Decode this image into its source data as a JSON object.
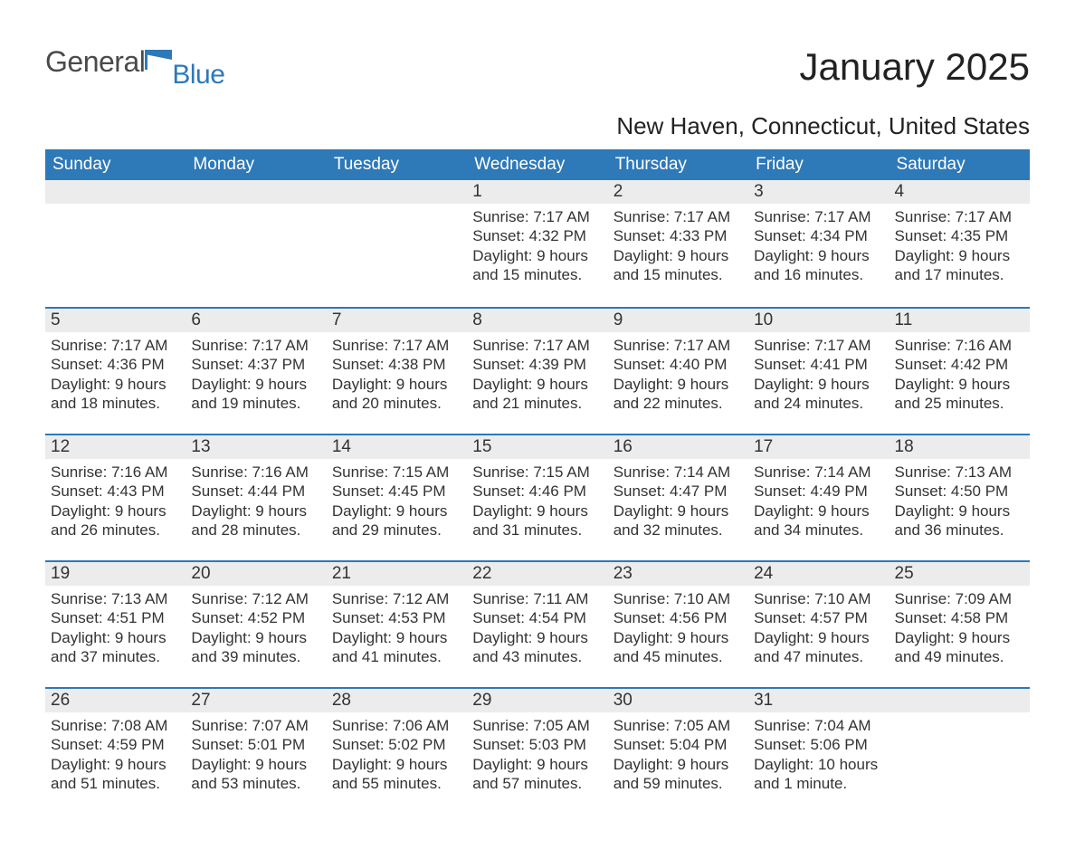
{
  "brand": {
    "main": "General",
    "sub": "Blue",
    "accent_color": "#2e79b8"
  },
  "title": "January 2025",
  "location": "New Haven, Connecticut, United States",
  "colors": {
    "header_bg": "#2e79b8",
    "header_text": "#ffffff",
    "date_row_bg": "#ececec",
    "date_row_border": "#2e79b8",
    "body_text": "#333333",
    "page_bg": "#ffffff"
  },
  "fonts": {
    "family": "Arial",
    "th_size_pt": 14,
    "title_size_pt": 32,
    "location_size_pt": 20,
    "body_size_pt": 13
  },
  "weekday_headers": [
    "Sunday",
    "Monday",
    "Tuesday",
    "Wednesday",
    "Thursday",
    "Friday",
    "Saturday"
  ],
  "weeks": [
    [
      {
        "date": null
      },
      {
        "date": null
      },
      {
        "date": null
      },
      {
        "date": "1",
        "sunrise": "Sunrise: 7:17 AM",
        "sunset": "Sunset: 4:32 PM",
        "dl1": "Daylight: 9 hours",
        "dl2": "and 15 minutes."
      },
      {
        "date": "2",
        "sunrise": "Sunrise: 7:17 AM",
        "sunset": "Sunset: 4:33 PM",
        "dl1": "Daylight: 9 hours",
        "dl2": "and 15 minutes."
      },
      {
        "date": "3",
        "sunrise": "Sunrise: 7:17 AM",
        "sunset": "Sunset: 4:34 PM",
        "dl1": "Daylight: 9 hours",
        "dl2": "and 16 minutes."
      },
      {
        "date": "4",
        "sunrise": "Sunrise: 7:17 AM",
        "sunset": "Sunset: 4:35 PM",
        "dl1": "Daylight: 9 hours",
        "dl2": "and 17 minutes."
      }
    ],
    [
      {
        "date": "5",
        "sunrise": "Sunrise: 7:17 AM",
        "sunset": "Sunset: 4:36 PM",
        "dl1": "Daylight: 9 hours",
        "dl2": "and 18 minutes."
      },
      {
        "date": "6",
        "sunrise": "Sunrise: 7:17 AM",
        "sunset": "Sunset: 4:37 PM",
        "dl1": "Daylight: 9 hours",
        "dl2": "and 19 minutes."
      },
      {
        "date": "7",
        "sunrise": "Sunrise: 7:17 AM",
        "sunset": "Sunset: 4:38 PM",
        "dl1": "Daylight: 9 hours",
        "dl2": "and 20 minutes."
      },
      {
        "date": "8",
        "sunrise": "Sunrise: 7:17 AM",
        "sunset": "Sunset: 4:39 PM",
        "dl1": "Daylight: 9 hours",
        "dl2": "and 21 minutes."
      },
      {
        "date": "9",
        "sunrise": "Sunrise: 7:17 AM",
        "sunset": "Sunset: 4:40 PM",
        "dl1": "Daylight: 9 hours",
        "dl2": "and 22 minutes."
      },
      {
        "date": "10",
        "sunrise": "Sunrise: 7:17 AM",
        "sunset": "Sunset: 4:41 PM",
        "dl1": "Daylight: 9 hours",
        "dl2": "and 24 minutes."
      },
      {
        "date": "11",
        "sunrise": "Sunrise: 7:16 AM",
        "sunset": "Sunset: 4:42 PM",
        "dl1": "Daylight: 9 hours",
        "dl2": "and 25 minutes."
      }
    ],
    [
      {
        "date": "12",
        "sunrise": "Sunrise: 7:16 AM",
        "sunset": "Sunset: 4:43 PM",
        "dl1": "Daylight: 9 hours",
        "dl2": "and 26 minutes."
      },
      {
        "date": "13",
        "sunrise": "Sunrise: 7:16 AM",
        "sunset": "Sunset: 4:44 PM",
        "dl1": "Daylight: 9 hours",
        "dl2": "and 28 minutes."
      },
      {
        "date": "14",
        "sunrise": "Sunrise: 7:15 AM",
        "sunset": "Sunset: 4:45 PM",
        "dl1": "Daylight: 9 hours",
        "dl2": "and 29 minutes."
      },
      {
        "date": "15",
        "sunrise": "Sunrise: 7:15 AM",
        "sunset": "Sunset: 4:46 PM",
        "dl1": "Daylight: 9 hours",
        "dl2": "and 31 minutes."
      },
      {
        "date": "16",
        "sunrise": "Sunrise: 7:14 AM",
        "sunset": "Sunset: 4:47 PM",
        "dl1": "Daylight: 9 hours",
        "dl2": "and 32 minutes."
      },
      {
        "date": "17",
        "sunrise": "Sunrise: 7:14 AM",
        "sunset": "Sunset: 4:49 PM",
        "dl1": "Daylight: 9 hours",
        "dl2": "and 34 minutes."
      },
      {
        "date": "18",
        "sunrise": "Sunrise: 7:13 AM",
        "sunset": "Sunset: 4:50 PM",
        "dl1": "Daylight: 9 hours",
        "dl2": "and 36 minutes."
      }
    ],
    [
      {
        "date": "19",
        "sunrise": "Sunrise: 7:13 AM",
        "sunset": "Sunset: 4:51 PM",
        "dl1": "Daylight: 9 hours",
        "dl2": "and 37 minutes."
      },
      {
        "date": "20",
        "sunrise": "Sunrise: 7:12 AM",
        "sunset": "Sunset: 4:52 PM",
        "dl1": "Daylight: 9 hours",
        "dl2": "and 39 minutes."
      },
      {
        "date": "21",
        "sunrise": "Sunrise: 7:12 AM",
        "sunset": "Sunset: 4:53 PM",
        "dl1": "Daylight: 9 hours",
        "dl2": "and 41 minutes."
      },
      {
        "date": "22",
        "sunrise": "Sunrise: 7:11 AM",
        "sunset": "Sunset: 4:54 PM",
        "dl1": "Daylight: 9 hours",
        "dl2": "and 43 minutes."
      },
      {
        "date": "23",
        "sunrise": "Sunrise: 7:10 AM",
        "sunset": "Sunset: 4:56 PM",
        "dl1": "Daylight: 9 hours",
        "dl2": "and 45 minutes."
      },
      {
        "date": "24",
        "sunrise": "Sunrise: 7:10 AM",
        "sunset": "Sunset: 4:57 PM",
        "dl1": "Daylight: 9 hours",
        "dl2": "and 47 minutes."
      },
      {
        "date": "25",
        "sunrise": "Sunrise: 7:09 AM",
        "sunset": "Sunset: 4:58 PM",
        "dl1": "Daylight: 9 hours",
        "dl2": "and 49 minutes."
      }
    ],
    [
      {
        "date": "26",
        "sunrise": "Sunrise: 7:08 AM",
        "sunset": "Sunset: 4:59 PM",
        "dl1": "Daylight: 9 hours",
        "dl2": "and 51 minutes."
      },
      {
        "date": "27",
        "sunrise": "Sunrise: 7:07 AM",
        "sunset": "Sunset: 5:01 PM",
        "dl1": "Daylight: 9 hours",
        "dl2": "and 53 minutes."
      },
      {
        "date": "28",
        "sunrise": "Sunrise: 7:06 AM",
        "sunset": "Sunset: 5:02 PM",
        "dl1": "Daylight: 9 hours",
        "dl2": "and 55 minutes."
      },
      {
        "date": "29",
        "sunrise": "Sunrise: 7:05 AM",
        "sunset": "Sunset: 5:03 PM",
        "dl1": "Daylight: 9 hours",
        "dl2": "and 57 minutes."
      },
      {
        "date": "30",
        "sunrise": "Sunrise: 7:05 AM",
        "sunset": "Sunset: 5:04 PM",
        "dl1": "Daylight: 9 hours",
        "dl2": "and 59 minutes."
      },
      {
        "date": "31",
        "sunrise": "Sunrise: 7:04 AM",
        "sunset": "Sunset: 5:06 PM",
        "dl1": "Daylight: 10 hours",
        "dl2": "and 1 minute."
      },
      {
        "date": null
      }
    ]
  ]
}
